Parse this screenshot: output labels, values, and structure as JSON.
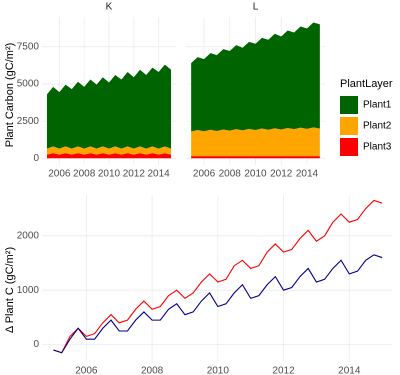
{
  "chart_data": [
    {
      "type": "area",
      "title": "K",
      "y_label": "Plant Carbon (gC/m²)",
      "legend_title": "PlantLayer",
      "x": [
        2005,
        2005.5,
        2006,
        2006.5,
        2007,
        2007.5,
        2008,
        2008.5,
        2009,
        2009.5,
        2010,
        2010.5,
        2011,
        2011.5,
        2012,
        2012.5,
        2013,
        2013.5,
        2014,
        2014.5,
        2015
      ],
      "series": [
        {
          "name": "Plant1",
          "color": "#006400",
          "values": [
            3650,
            4000,
            3800,
            4150,
            4000,
            4350,
            4150,
            4500,
            4300,
            4650,
            4450,
            4800,
            4650,
            5000,
            4800,
            5150,
            4950,
            5300,
            5150,
            5500,
            5300
          ]
        },
        {
          "name": "Plant2",
          "color": "#ffa500",
          "values": [
            400,
            450,
            400,
            450,
            400,
            450,
            400,
            450,
            400,
            450,
            400,
            450,
            400,
            450,
            400,
            450,
            400,
            450,
            400,
            450,
            400
          ]
        },
        {
          "name": "Plant3",
          "color": "#ff0000",
          "values": [
            250,
            350,
            250,
            350,
            250,
            350,
            250,
            350,
            250,
            350,
            250,
            350,
            250,
            350,
            250,
            350,
            250,
            350,
            250,
            350,
            250
          ]
        }
      ],
      "xlim": [
        2004.6,
        2015.4
      ],
      "ylim": [
        -450,
        9500
      ],
      "xticks": [
        2006,
        2008,
        2010,
        2012,
        2014
      ],
      "yticks": [
        0,
        2500,
        5000,
        7500
      ],
      "grid": true
    },
    {
      "type": "area",
      "title": "L",
      "x": [
        2005,
        2005.5,
        2006,
        2006.5,
        2007,
        2007.5,
        2008,
        2008.5,
        2009,
        2009.5,
        2010,
        2010.5,
        2011,
        2011.5,
        2012,
        2012.5,
        2013,
        2013.5,
        2014,
        2014.5,
        2015
      ],
      "series": [
        {
          "name": "Plant1",
          "color": "#006400",
          "values": [
            4600,
            4900,
            4850,
            5150,
            5100,
            5400,
            5350,
            5650,
            5550,
            5850,
            5800,
            6100,
            6050,
            6350,
            6250,
            6550,
            6500,
            6800,
            6750,
            7050,
            7000
          ]
        },
        {
          "name": "Plant2",
          "color": "#ffa500",
          "values": [
            1650,
            1750,
            1670,
            1770,
            1690,
            1790,
            1710,
            1810,
            1730,
            1830,
            1750,
            1850,
            1770,
            1870,
            1790,
            1890,
            1810,
            1910,
            1830,
            1930,
            1850
          ]
        },
        {
          "name": "Plant3",
          "color": "#ff0000",
          "values": [
            150,
            150,
            150,
            150,
            150,
            150,
            150,
            150,
            150,
            150,
            150,
            150,
            150,
            150,
            150,
            150,
            150,
            150,
            150,
            150,
            150
          ]
        }
      ],
      "xlim": [
        2004.6,
        2015.4
      ],
      "ylim": [
        -450,
        9500
      ],
      "xticks": [
        2006,
        2008,
        2010,
        2012,
        2014
      ],
      "yticks": [
        0,
        2500,
        5000,
        7500
      ],
      "grid": true
    },
    {
      "type": "line",
      "y_label": "Δ Plant C (gC/m²)",
      "x": [
        2005,
        2005.25,
        2005.5,
        2005.75,
        2006,
        2006.25,
        2006.5,
        2006.75,
        2007,
        2007.25,
        2007.5,
        2007.75,
        2008,
        2008.25,
        2008.5,
        2008.75,
        2009,
        2009.25,
        2009.5,
        2009.75,
        2010,
        2010.25,
        2010.5,
        2010.75,
        2011,
        2011.25,
        2011.5,
        2011.75,
        2012,
        2012.25,
        2012.5,
        2012.75,
        2013,
        2013.25,
        2013.5,
        2013.75,
        2014,
        2014.25,
        2014.5,
        2014.75,
        2015
      ],
      "series": [
        {
          "color": "#ff0000",
          "values": [
            -100,
            -150,
            150,
            300,
            150,
            200,
            400,
            550,
            400,
            450,
            650,
            800,
            650,
            700,
            900,
            1000,
            850,
            950,
            1150,
            1300,
            1150,
            1200,
            1450,
            1550,
            1400,
            1450,
            1700,
            1850,
            1700,
            1750,
            1950,
            2100,
            1900,
            2000,
            2250,
            2400,
            2250,
            2300,
            2500,
            2650,
            2600
          ]
        },
        {
          "color": "#00008b",
          "values": [
            -100,
            -150,
            100,
            300,
            100,
            100,
            300,
            450,
            250,
            250,
            450,
            600,
            450,
            450,
            650,
            750,
            550,
            600,
            800,
            950,
            700,
            750,
            950,
            1100,
            850,
            900,
            1100,
            1250,
            1000,
            1050,
            1250,
            1400,
            1150,
            1200,
            1400,
            1550,
            1300,
            1350,
            1550,
            1650,
            1600
          ]
        }
      ],
      "xlim": [
        2004.65,
        2015.3
      ],
      "ylim": [
        -320,
        2750
      ],
      "xticks": [
        2006,
        2008,
        2010,
        2012,
        2014
      ],
      "yticks": [
        0,
        1000,
        2000
      ],
      "grid": true
    }
  ]
}
